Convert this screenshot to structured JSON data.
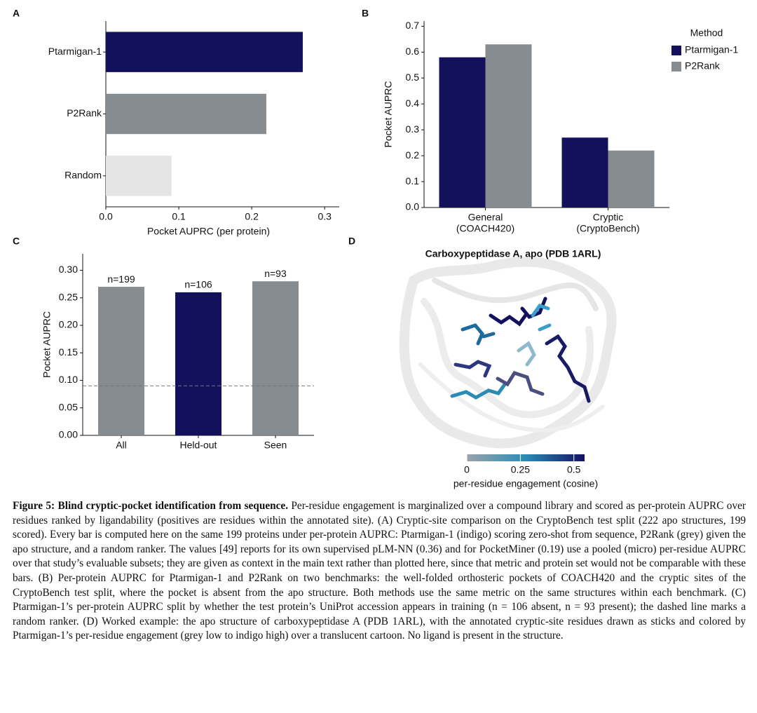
{
  "panels": [
    "A",
    "B",
    "C",
    "D"
  ],
  "chart_data": [
    {
      "type": "barh",
      "categories": [
        "Ptarmigan-1",
        "P2Rank",
        "Random"
      ],
      "values": [
        0.27,
        0.22,
        0.09
      ],
      "colors": [
        "#13105c",
        "#878c91",
        "#e4e4e4"
      ],
      "xlim": [
        0,
        0.32
      ],
      "xticks": [
        {
          "value": 0,
          "label": "0.0"
        },
        0.1,
        0.2,
        0.3
      ],
      "xlabel": "Pocket AUPRC (per protein)"
    },
    {
      "type": "bar",
      "categories": [
        [
          "General",
          "(COACH420)"
        ],
        [
          "Cryptic",
          "(CryptoBench)"
        ]
      ],
      "series": [
        {
          "name": "Ptarmigan-1",
          "color": "#13105c",
          "values": [
            0.58,
            0.27
          ]
        },
        {
          "name": "P2Rank",
          "color": "#878c91",
          "values": [
            0.63,
            0.22
          ]
        }
      ],
      "ylim": [
        0,
        0.72
      ],
      "yticks": [
        {
          "value": 0,
          "label": "0.0"
        },
        0.1,
        0.2,
        0.3,
        0.4,
        0.5,
        0.6,
        0.7
      ],
      "ylabel": "Pocket AUPRC",
      "legend_title": "Method",
      "legend": "top-right"
    },
    {
      "type": "bar",
      "categories": [
        "All",
        "Held-out",
        "Seen"
      ],
      "values": [
        0.27,
        0.26,
        0.28
      ],
      "colors": [
        "#878c91",
        "#13105c",
        "#878c91"
      ],
      "annotations": [
        "n=199",
        "n=106",
        "n=93"
      ],
      "hline": 0.09,
      "ylim": [
        0,
        0.33
      ],
      "yticks": [
        {
          "value": 0,
          "label": "0.00"
        },
        {
          "value": 0.05,
          "label": "0.05"
        },
        {
          "value": 0.1,
          "label": "0.10"
        },
        {
          "value": 0.15,
          "label": "0.15"
        },
        {
          "value": 0.2,
          "label": "0.20"
        },
        {
          "value": 0.25,
          "label": "0.25"
        },
        {
          "value": 0.3,
          "label": "0.30"
        }
      ],
      "ylabel": "Pocket AUPRC"
    },
    {
      "type": "colorbar",
      "title": "Carboxypeptidase A, apo (PDB 1ARL)",
      "xlim": [
        0,
        0.55
      ],
      "xticks": [
        0,
        0.25,
        0.5
      ],
      "colors": [
        "#9aa3ab",
        "#2a8bb5",
        "#151060"
      ],
      "xlabel": "per-residue engagement (cosine)"
    }
  ],
  "caption": {
    "title": "Figure 5:  Blind cryptic-pocket identification from sequence.",
    "text": "Per-residue engagement is marginalized over a compound library and scored as per-protein AUPRC over residues ranked by ligandability (positives are residues within the annotated site). (A) Cryptic-site comparison on the CryptoBench test split (222 apo structures, 199 scored). Every bar is computed here on the same 199 proteins under per-protein AUPRC: Ptarmigan-1 (indigo) scoring zero-shot from sequence, P2Rank (grey) given the apo structure, and a random ranker. The values [49] reports for its own supervised pLM-NN (0.36) and for PocketMiner (0.19) use a pooled (micro) per-residue AUPRC over that study’s evaluable subsets; they are given as context in the main text rather than plotted here, since that metric and protein set would not be comparable with these bars. (B) Per-protein AUPRC for Ptarmigan-1 and P2Rank on two benchmarks: the well-folded orthosteric pockets of COACH420 and the cryptic sites of the CryptoBench test split, where the pocket is absent from the apo structure. Both methods use the same metric on the same structures within each benchmark. (C) Ptarmigan-1’s per-protein AUPRC split by whether the test protein’s UniProt accession appears in training (n = 106 absent, n = 93 present); the dashed line marks a random ranker. (D) Worked example: the apo structure of carboxypeptidase A (PDB 1ARL), with the annotated cryptic-site residues drawn as sticks and colored by Ptarmigan-1’s per-residue engagement (grey low to indigo high) over a translucent cartoon. No ligand is present in the structure."
  }
}
